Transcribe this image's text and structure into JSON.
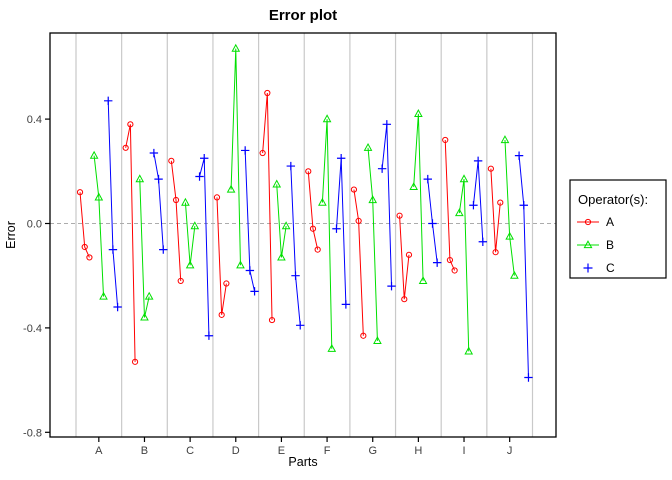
{
  "window": {
    "background": "#FFFFFF"
  },
  "legend": {
    "title": "Operator(s):",
    "items": [
      {
        "label": "A",
        "color": "#FF0000",
        "marker": "circle"
      },
      {
        "label": "B",
        "color": "#00E000",
        "marker": "triangle"
      },
      {
        "label": "C",
        "color": "#0000FF",
        "marker": "plus"
      }
    ]
  },
  "colors": {
    "grid": "#C9C9C9",
    "zero_line": "#ACACAC",
    "axis_text": "#404040",
    "plot_border": "#000000",
    "background": "#FFFFFF"
  },
  "chart_data": {
    "type": "line",
    "title": "Error plot",
    "xlabel": "Parts",
    "ylabel": "Error",
    "categories": [
      "A",
      "B",
      "C",
      "D",
      "E",
      "F",
      "G",
      "H",
      "I",
      "J"
    ],
    "trials_per_operator": 3,
    "y_ticks": [
      0.4,
      0.0,
      -0.4,
      -0.8
    ],
    "ylim": [
      -0.82,
      0.73
    ],
    "grid": "vertical part separators only",
    "zero_reference_line": "dashed horizontal at 0",
    "legend_position": "right",
    "series": [
      {
        "name": "A",
        "color": "#FF0000",
        "marker": "circle",
        "values": [
          [
            0.12,
            -0.09,
            -0.13
          ],
          [
            0.29,
            0.38,
            -0.53
          ],
          [
            0.24,
            0.09,
            -0.22
          ],
          [
            0.1,
            -0.35,
            -0.23
          ],
          [
            0.27,
            0.5,
            -0.37
          ],
          [
            0.2,
            -0.02,
            -0.1
          ],
          [
            0.13,
            0.01,
            -0.43
          ],
          [
            0.03,
            -0.29,
            -0.12
          ],
          [
            0.32,
            -0.14,
            -0.18
          ],
          [
            0.21,
            -0.11,
            0.08
          ]
        ]
      },
      {
        "name": "B",
        "color": "#00E000",
        "marker": "triangle",
        "values": [
          [
            0.26,
            0.1,
            -0.28
          ],
          [
            0.17,
            -0.36,
            -0.28
          ],
          [
            0.08,
            -0.16,
            -0.01
          ],
          [
            0.13,
            0.67,
            -0.16
          ],
          [
            0.15,
            -0.13,
            -0.01
          ],
          [
            0.08,
            0.4,
            -0.48
          ],
          [
            0.29,
            0.09,
            -0.45
          ],
          [
            0.14,
            0.42,
            -0.22
          ],
          [
            0.04,
            0.17,
            -0.49
          ],
          [
            0.32,
            -0.05,
            -0.2
          ]
        ]
      },
      {
        "name": "C",
        "color": "#0000FF",
        "marker": "plus",
        "values": [
          [
            0.47,
            -0.1,
            -0.32
          ],
          [
            0.27,
            0.17,
            -0.1
          ],
          [
            0.18,
            0.25,
            -0.43
          ],
          [
            0.28,
            -0.18,
            -0.26
          ],
          [
            0.22,
            -0.2,
            -0.39
          ],
          [
            -0.02,
            0.25,
            -0.31
          ],
          [
            0.21,
            0.38,
            -0.24
          ],
          [
            0.17,
            0.0,
            -0.15
          ],
          [
            0.07,
            0.24,
            -0.07
          ],
          [
            0.26,
            0.07,
            -0.59
          ]
        ]
      }
    ]
  }
}
